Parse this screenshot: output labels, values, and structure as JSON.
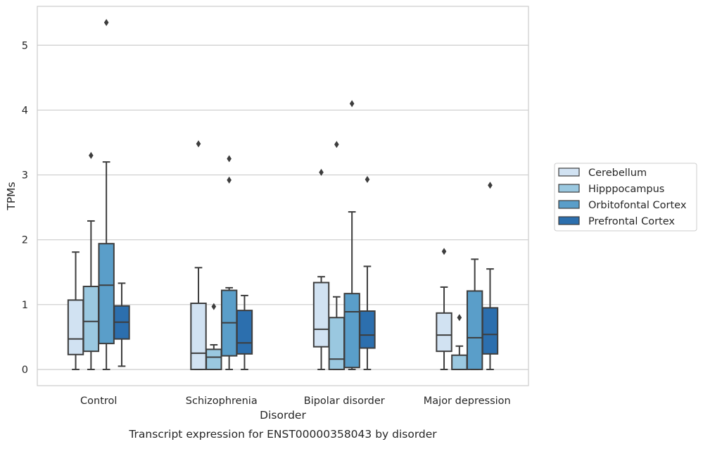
{
  "chart_data": {
    "type": "box",
    "caption": "Transcript expression for ENST00000358043 by disorder",
    "xlabel": "Disorder",
    "ylabel": "TPMs",
    "ylim": [
      -0.25,
      5.6
    ],
    "yticks": [
      0,
      1,
      2,
      3,
      4,
      5
    ],
    "grid": "horizontal",
    "legend_position": "right",
    "categories": [
      "Control",
      "Schizophrenia",
      "Bipolar disorder",
      "Major depression"
    ],
    "series": [
      {
        "name": "Cerebellum",
        "color": "#d1e2f2",
        "boxes": [
          {
            "whisker_low": 0.0,
            "q1": 0.23,
            "median": 0.47,
            "q3": 1.07,
            "whisker_high": 1.81,
            "outliers": []
          },
          {
            "whisker_low": 0.0,
            "q1": 0.0,
            "median": 0.25,
            "q3": 1.02,
            "whisker_high": 1.57,
            "outliers": [
              3.48
            ]
          },
          {
            "whisker_low": 0.0,
            "q1": 0.35,
            "median": 0.62,
            "q3": 1.34,
            "whisker_high": 1.43,
            "outliers": [
              3.04
            ]
          },
          {
            "whisker_low": 0.0,
            "q1": 0.28,
            "median": 0.53,
            "q3": 0.87,
            "whisker_high": 1.27,
            "outliers": [
              1.82
            ]
          }
        ]
      },
      {
        "name": "Hipppocampus",
        "color": "#9ac8e0",
        "boxes": [
          {
            "whisker_low": 0.0,
            "q1": 0.28,
            "median": 0.74,
            "q3": 1.28,
            "whisker_high": 2.29,
            "outliers": [
              3.3
            ]
          },
          {
            "whisker_low": 0.0,
            "q1": 0.0,
            "median": 0.19,
            "q3": 0.31,
            "whisker_high": 0.38,
            "outliers": [
              0.97
            ]
          },
          {
            "whisker_low": 0.0,
            "q1": 0.0,
            "median": 0.16,
            "q3": 0.8,
            "whisker_high": 1.12,
            "outliers": [
              3.47
            ]
          },
          {
            "whisker_low": 0.0,
            "q1": 0.0,
            "median": 0.0,
            "q3": 0.22,
            "whisker_high": 0.36,
            "outliers": [
              0.8
            ]
          }
        ]
      },
      {
        "name": "Orbitofontal Cortex",
        "color": "#5a9ec9",
        "boxes": [
          {
            "whisker_low": 0.0,
            "q1": 0.4,
            "median": 1.3,
            "q3": 1.94,
            "whisker_high": 3.2,
            "outliers": [
              5.35
            ]
          },
          {
            "whisker_low": 0.0,
            "q1": 0.21,
            "median": 0.72,
            "q3": 1.22,
            "whisker_high": 1.26,
            "outliers": [
              3.25,
              2.92
            ]
          },
          {
            "whisker_low": 0.0,
            "q1": 0.03,
            "median": 0.89,
            "q3": 1.17,
            "whisker_high": 2.43,
            "outliers": [
              4.1
            ]
          },
          {
            "whisker_low": 0.0,
            "q1": 0.0,
            "median": 0.49,
            "q3": 1.21,
            "whisker_high": 1.7,
            "outliers": []
          }
        ]
      },
      {
        "name": "Prefrontal Cortex",
        "color": "#2c6fae",
        "boxes": [
          {
            "whisker_low": 0.05,
            "q1": 0.47,
            "median": 0.73,
            "q3": 0.98,
            "whisker_high": 1.33,
            "outliers": []
          },
          {
            "whisker_low": 0.0,
            "q1": 0.24,
            "median": 0.41,
            "q3": 0.91,
            "whisker_high": 1.14,
            "outliers": []
          },
          {
            "whisker_low": 0.0,
            "q1": 0.33,
            "median": 0.53,
            "q3": 0.9,
            "whisker_high": 1.59,
            "outliers": [
              2.93
            ]
          },
          {
            "whisker_low": 0.0,
            "q1": 0.24,
            "median": 0.54,
            "q3": 0.95,
            "whisker_high": 1.55,
            "outliers": [
              2.84
            ]
          }
        ]
      }
    ]
  }
}
